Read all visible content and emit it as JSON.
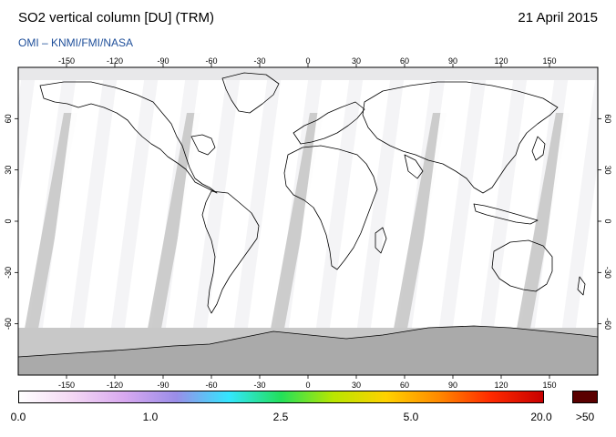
{
  "header": {
    "title": "SO2 vertical column [DU] (TRM)",
    "date": "21 April 2015",
    "credit": "OMI  –  KNMI/FMI/NASA"
  },
  "map": {
    "lon_ticks": [
      "-150",
      "-120",
      "-90",
      "-60",
      "-30",
      "0",
      "30",
      "60",
      "90",
      "120",
      "150"
    ],
    "lat_ticks_left": [
      "60",
      "30",
      "0",
      "-30",
      "-60"
    ],
    "lat_ticks_right": [
      "60",
      "30",
      "0",
      "-30",
      "-60"
    ],
    "no_data_color": "#c8c8c8",
    "orbit_gap_color": "#ffffff",
    "land_outline_color": "#000000"
  },
  "colorbar": {
    "labels": [
      "0.0",
      "1.0",
      "2.5",
      "5.0",
      "20.0"
    ],
    "over_label": ">50",
    "over_color": "#5a0000",
    "stops": [
      "#ffffff",
      "#f4d8f4",
      "#d9a9f0",
      "#9a8de8",
      "#33e6ff",
      "#22e05a",
      "#b9e600",
      "#ffd200",
      "#ff8a00",
      "#ff2a00",
      "#c80000"
    ]
  }
}
